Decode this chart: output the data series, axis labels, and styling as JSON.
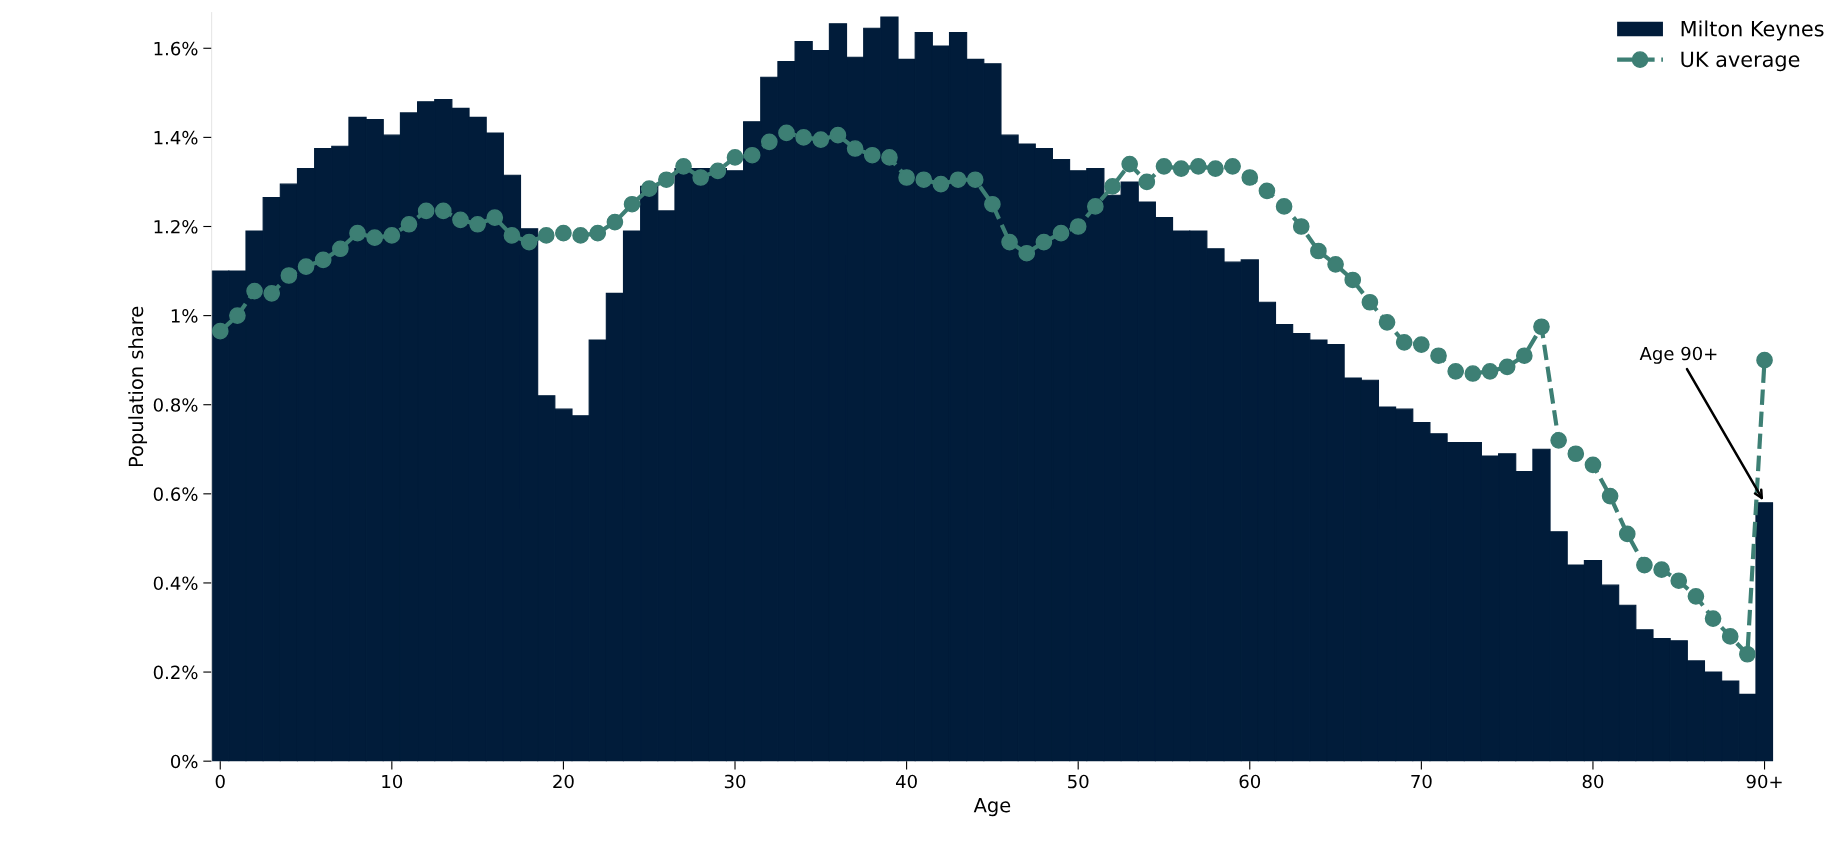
{
  "chart_data": {
    "type": "bar",
    "xlabel": "Age",
    "ylabel": "Population share",
    "x": [
      0,
      1,
      2,
      3,
      4,
      5,
      6,
      7,
      8,
      9,
      10,
      11,
      12,
      13,
      14,
      15,
      16,
      17,
      18,
      19,
      20,
      21,
      22,
      23,
      24,
      25,
      26,
      27,
      28,
      29,
      30,
      31,
      32,
      33,
      34,
      35,
      36,
      37,
      38,
      39,
      40,
      41,
      42,
      43,
      44,
      45,
      46,
      47,
      48,
      49,
      50,
      51,
      52,
      53,
      54,
      55,
      56,
      57,
      58,
      59,
      60,
      61,
      62,
      63,
      64,
      65,
      66,
      67,
      68,
      69,
      70,
      71,
      72,
      73,
      74,
      75,
      76,
      77,
      78,
      79,
      80,
      81,
      82,
      83,
      84,
      85,
      86,
      87,
      88,
      89,
      90
    ],
    "series": [
      {
        "name": "Milton Keynes",
        "color": "#011c3a",
        "values": [
          1.1,
          1.1,
          1.19,
          1.265,
          1.295,
          1.33,
          1.375,
          1.38,
          1.445,
          1.44,
          1.405,
          1.455,
          1.48,
          1.485,
          1.465,
          1.445,
          1.41,
          1.315,
          1.195,
          0.82,
          0.79,
          0.775,
          0.945,
          1.05,
          1.19,
          1.29,
          1.235,
          1.33,
          1.33,
          1.33,
          1.325,
          1.435,
          1.535,
          1.57,
          1.615,
          1.595,
          1.655,
          1.58,
          1.645,
          1.67,
          1.575,
          1.635,
          1.605,
          1.635,
          1.575,
          1.565,
          1.405,
          1.385,
          1.375,
          1.35,
          1.325,
          1.33,
          1.27,
          1.3,
          1.255,
          1.22,
          1.19,
          1.19,
          1.15,
          1.12,
          1.125,
          1.03,
          0.98,
          0.96,
          0.945,
          0.935,
          0.86,
          0.855,
          0.795,
          0.79,
          0.76,
          0.735,
          0.715,
          0.715,
          0.685,
          0.69,
          0.65,
          0.7,
          0.515,
          0.44,
          0.45,
          0.395,
          0.35,
          0.295,
          0.275,
          0.27,
          0.225,
          0.2,
          0.18,
          0.15,
          0.58
        ]
      },
      {
        "name": "UK average",
        "type": "line",
        "color": "#3d7f74",
        "marker": "circle",
        "line_style": "dashed",
        "values": [
          0.965,
          1.0,
          1.055,
          1.05,
          1.09,
          1.11,
          1.125,
          1.15,
          1.185,
          1.175,
          1.18,
          1.205,
          1.235,
          1.235,
          1.215,
          1.205,
          1.22,
          1.18,
          1.165,
          1.18,
          1.185,
          1.18,
          1.185,
          1.21,
          1.25,
          1.285,
          1.305,
          1.335,
          1.31,
          1.325,
          1.355,
          1.36,
          1.39,
          1.41,
          1.4,
          1.395,
          1.405,
          1.375,
          1.36,
          1.355,
          1.31,
          1.305,
          1.295,
          1.305,
          1.305,
          1.25,
          1.165,
          1.14,
          1.165,
          1.185,
          1.2,
          1.245,
          1.29,
          1.34,
          1.3,
          1.335,
          1.33,
          1.335,
          1.33,
          1.335,
          1.31,
          1.28,
          1.245,
          1.2,
          1.145,
          1.115,
          1.08,
          1.03,
          0.985,
          0.94,
          0.935,
          0.91,
          0.875,
          0.87,
          0.875,
          0.885,
          0.91,
          0.975,
          0.72,
          0.69,
          0.665,
          0.595,
          0.51,
          0.44,
          0.43,
          0.405,
          0.37,
          0.32,
          0.28,
          0.24,
          0.9
        ]
      }
    ],
    "xlim": [
      -0.5,
      90.5
    ],
    "xticks": [
      0,
      10,
      20,
      30,
      40,
      50,
      60,
      70,
      80,
      {
        "value": 90,
        "label": "90+"
      }
    ],
    "ylim": [
      0,
      1.68
    ],
    "yticks": [
      {
        "value": 0,
        "label": "0%"
      },
      {
        "value": 0.2,
        "label": "0.2%"
      },
      {
        "value": 0.4,
        "label": "0.4%"
      },
      {
        "value": 0.6,
        "label": "0.6%"
      },
      {
        "value": 0.8,
        "label": "0.8%"
      },
      {
        "value": 1,
        "label": "1%"
      },
      {
        "value": 1.2,
        "label": "1.2%"
      },
      {
        "value": 1.4,
        "label": "1.4%"
      },
      {
        "value": 1.6,
        "label": "1.6%"
      }
    ],
    "annotations": [
      {
        "text": "Age 90+",
        "x": 90,
        "y": 0.58
      }
    ],
    "legend": "top right",
    "grid": false
  }
}
